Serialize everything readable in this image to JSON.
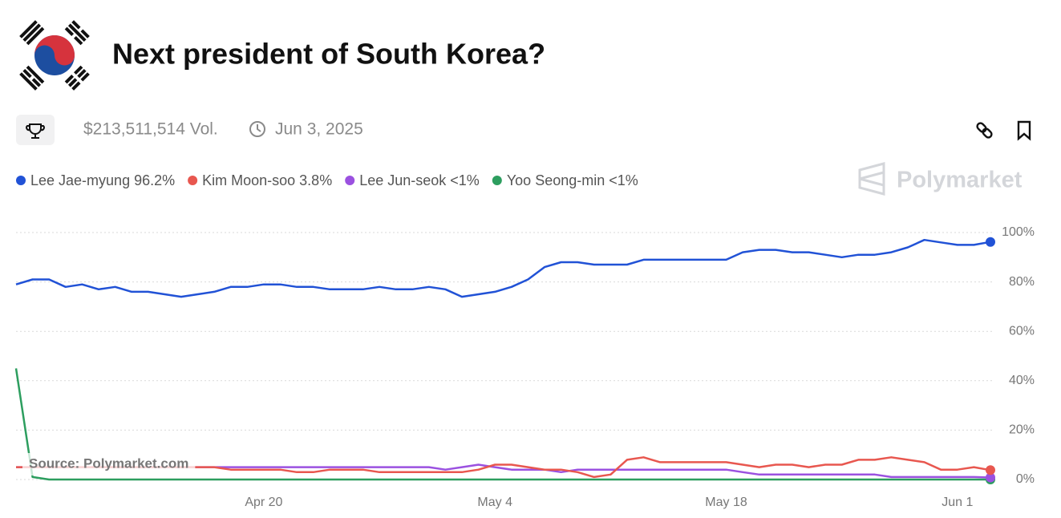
{
  "header": {
    "title": "Next president of South Korea?",
    "volume": "$213,511,514 Vol.",
    "end_date": "Jun 3, 2025",
    "brand": "Polymarket"
  },
  "chart_data": {
    "type": "line",
    "x": [
      "Apr 5",
      "Apr 6",
      "Apr 7",
      "Apr 8",
      "Apr 9",
      "Apr 10",
      "Apr 11",
      "Apr 12",
      "Apr 13",
      "Apr 14",
      "Apr 15",
      "Apr 16",
      "Apr 17",
      "Apr 18",
      "Apr 19",
      "Apr 20",
      "Apr 21",
      "Apr 22",
      "Apr 23",
      "Apr 24",
      "Apr 25",
      "Apr 26",
      "Apr 27",
      "Apr 28",
      "Apr 29",
      "Apr 30",
      "May 1",
      "May 2",
      "May 3",
      "May 4",
      "May 5",
      "May 6",
      "May 7",
      "May 8",
      "May 9",
      "May 10",
      "May 11",
      "May 12",
      "May 13",
      "May 14",
      "May 15",
      "May 16",
      "May 17",
      "May 18",
      "May 19",
      "May 20",
      "May 21",
      "May 22",
      "May 23",
      "May 24",
      "May 25",
      "May 26",
      "May 27",
      "May 28",
      "May 29",
      "May 30",
      "May 31",
      "Jun 1",
      "Jun 2",
      "Jun 3"
    ],
    "series": [
      {
        "name": "Lee Jae-myung",
        "color": "#2152d6",
        "value_label": "96.2%",
        "values": [
          79,
          81,
          81,
          78,
          79,
          77,
          78,
          76,
          76,
          75,
          74,
          75,
          76,
          78,
          78,
          79,
          79,
          78,
          78,
          77,
          77,
          77,
          78,
          77,
          77,
          78,
          77,
          74,
          75,
          76,
          78,
          81,
          86,
          88,
          88,
          87,
          87,
          87,
          89,
          89,
          89,
          89,
          89,
          89,
          92,
          93,
          93,
          92,
          92,
          91,
          90,
          91,
          91,
          92,
          94,
          97,
          96,
          95,
          95,
          96.2
        ]
      },
      {
        "name": "Kim Moon-soo",
        "color": "#e8574f",
        "value_label": "3.8%",
        "values": [
          5,
          5,
          5,
          5,
          5,
          5,
          5,
          5,
          5,
          5,
          5,
          5,
          5,
          4,
          4,
          4,
          4,
          3,
          3,
          4,
          4,
          4,
          3,
          3,
          3,
          3,
          3,
          3,
          4,
          6,
          6,
          5,
          4,
          4,
          3,
          1,
          2,
          8,
          9,
          7,
          7,
          7,
          7,
          7,
          6,
          5,
          6,
          6,
          5,
          6,
          6,
          8,
          8,
          9,
          8,
          7,
          4,
          4,
          5,
          3.8
        ]
      },
      {
        "name": "Lee Jun-seok",
        "color": "#9b51e0",
        "value_label": "<1%",
        "values": [
          5,
          5,
          5,
          5,
          5,
          5,
          5,
          5,
          5,
          5,
          5,
          5,
          5,
          5,
          5,
          5,
          5,
          5,
          5,
          5,
          5,
          5,
          5,
          5,
          5,
          5,
          4,
          5,
          6,
          5,
          4,
          4,
          4,
          3,
          4,
          4,
          4,
          4,
          4,
          4,
          4,
          4,
          4,
          4,
          3,
          2,
          2,
          2,
          2,
          2,
          2,
          2,
          2,
          1,
          1,
          1,
          1,
          1,
          1,
          0.8
        ]
      },
      {
        "name": "Yoo Seong-min",
        "color": "#2d9e5f",
        "value_label": "<1%",
        "values": [
          45,
          1,
          0,
          0,
          0,
          0,
          0,
          0,
          0,
          0,
          0,
          0,
          0,
          0,
          0,
          0,
          0,
          0,
          0,
          0,
          0,
          0,
          0,
          0,
          0,
          0,
          0,
          0,
          0,
          0,
          0,
          0,
          0,
          0,
          0,
          0,
          0,
          0,
          0,
          0,
          0,
          0,
          0,
          0,
          0,
          0,
          0,
          0,
          0,
          0,
          0,
          0,
          0,
          0,
          0,
          0,
          0,
          0,
          0,
          0
        ]
      }
    ],
    "xticks": [
      "Apr 20",
      "May 4",
      "May 18",
      "Jun 1"
    ],
    "ylim": [
      0,
      100
    ],
    "yticks": [
      {
        "value": 0,
        "label": "0%"
      },
      {
        "value": 20,
        "label": "20%"
      },
      {
        "value": 40,
        "label": "40%"
      },
      {
        "value": 60,
        "label": "60%"
      },
      {
        "value": 80,
        "label": "80%"
      },
      {
        "value": 100,
        "label": "100%"
      }
    ],
    "grid": true,
    "source": "Source: Polymarket.com"
  }
}
